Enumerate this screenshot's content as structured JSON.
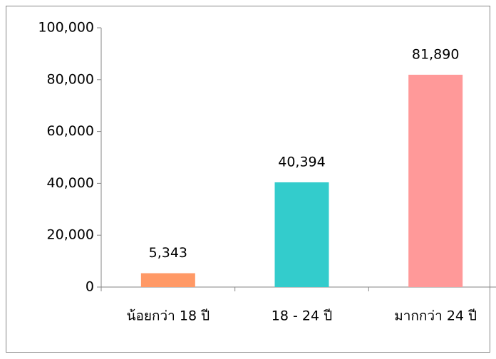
{
  "chart_data": {
    "type": "bar",
    "categories": [
      "น้อยกว่า 18 ปี",
      "18 - 24 ปี",
      "มากกว่า 24 ปี"
    ],
    "values": [
      5343,
      40394,
      81890
    ],
    "value_labels": [
      "5,343",
      "40,394",
      "81,890"
    ],
    "colors": [
      "#ff9966",
      "#33cccc",
      "#ff9999"
    ],
    "ylim": [
      0,
      100000
    ],
    "yticks": [
      0,
      {
        "value": 20000,
        "label": "20,000"
      },
      {
        "value": 40000,
        "label": "40,000"
      },
      {
        "value": 60000,
        "label": "60,000"
      },
      {
        "value": 80000,
        "label": "80,000"
      },
      {
        "value": 100000,
        "label": "100,000"
      }
    ],
    "grid": false
  }
}
